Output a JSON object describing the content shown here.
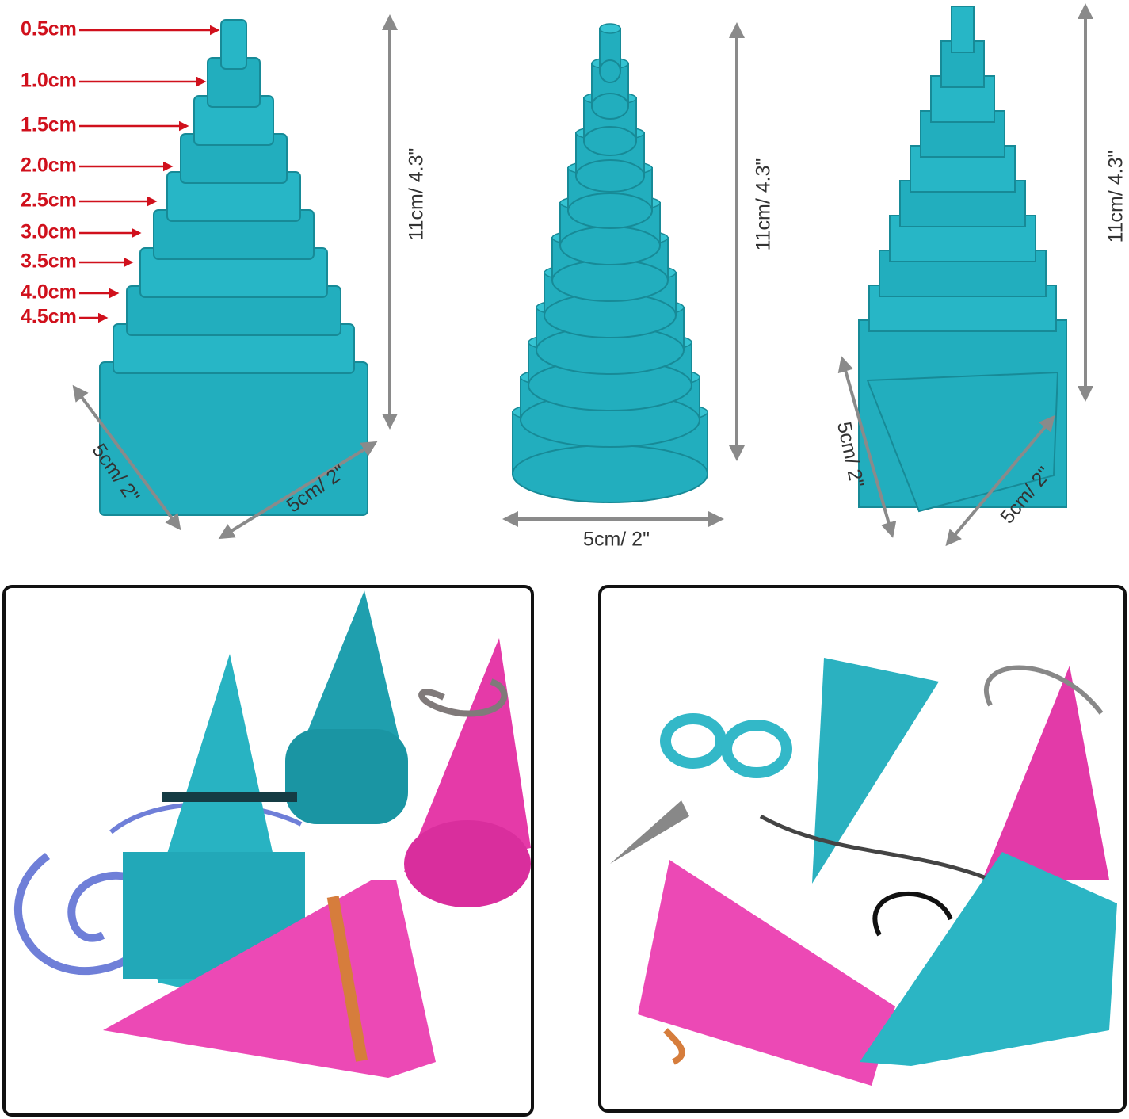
{
  "square_tower": {
    "step_labels": [
      "0.5cm",
      "1.0cm",
      "1.5cm",
      "2.0cm",
      "2.5cm",
      "3.0cm",
      "3.5cm",
      "4.0cm",
      "4.5cm"
    ],
    "height": "11cm/ 4.3\"",
    "depth": "5cm/ 2\"",
    "width": "5cm/ 2\""
  },
  "round_tower": {
    "height": "11cm/ 4.3\"",
    "width": "5cm/ 2\""
  },
  "triangle_tower": {
    "height": "11cm/ 4.3\"",
    "depth": "5cm/ 2\"",
    "width": "5cm/ 2\""
  }
}
